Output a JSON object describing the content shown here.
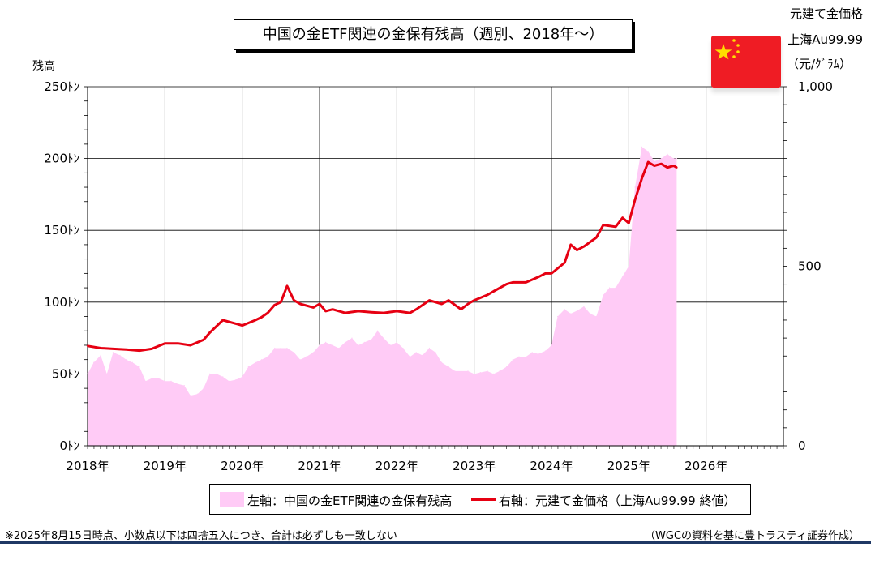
{
  "title": "中国の金ETF関連の金保有残高（週別、2018年～）",
  "left_axis": {
    "label": "残高",
    "ticks": [
      "250ﾄﾝ",
      "200ﾄﾝ",
      "150ﾄﾝ",
      "100ﾄﾝ",
      "50ﾄﾝ",
      "0ﾄﾝ"
    ]
  },
  "right_axis": {
    "label_line1": "元建て金価格",
    "label_line2": "上海Au99.99",
    "label_line3": "（元/ｸﾞﾗﾑ）",
    "ticks": [
      "1,000",
      "500",
      "0"
    ]
  },
  "x_ticks": [
    "2018年",
    "2019年",
    "2020年",
    "2021年",
    "2022年",
    "2023年",
    "2024年",
    "2025年",
    "2026年"
  ],
  "legend": {
    "area_label": "左軸：中国の金ETF関連の金保有残高",
    "line_label": "右軸：元建て金価格（上海Au99.99 終値）"
  },
  "footnote": "※2025年8月15日時点、小数点以下は四捨五入につき、合計は必ずしも一致しない",
  "source": "（WGCの資料を基に豊トラスティ証券作成）",
  "flag_icon": "china-flag-icon",
  "colors": {
    "area": "#ffcbf6",
    "line": "#e60012",
    "grid": "#000000",
    "flag_red": "#ef1c24",
    "flag_star": "#ffde00"
  },
  "chart_data": {
    "type": "area+line",
    "x_range": [
      "2018-01",
      "2027-01"
    ],
    "y_left_range": [
      0,
      250
    ],
    "y_right_range": [
      0,
      1000
    ],
    "grid": "on",
    "legend_position": "bottom",
    "series": [
      {
        "name": "左軸：中国の金ETF関連の金保有残高",
        "axis": "left",
        "type": "area",
        "x": [
          2018.0,
          2018.08,
          2018.17,
          2018.25,
          2018.33,
          2018.42,
          2018.5,
          2018.58,
          2018.67,
          2018.75,
          2018.83,
          2018.92,
          2019.0,
          2019.08,
          2019.17,
          2019.25,
          2019.33,
          2019.42,
          2019.5,
          2019.58,
          2019.67,
          2019.75,
          2019.83,
          2019.92,
          2020.0,
          2020.08,
          2020.17,
          2020.25,
          2020.33,
          2020.42,
          2020.5,
          2020.58,
          2020.67,
          2020.75,
          2020.83,
          2020.92,
          2021.0,
          2021.08,
          2021.17,
          2021.25,
          2021.33,
          2021.42,
          2021.5,
          2021.58,
          2021.67,
          2021.75,
          2021.83,
          2021.92,
          2022.0,
          2022.08,
          2022.17,
          2022.25,
          2022.33,
          2022.42,
          2022.5,
          2022.58,
          2022.67,
          2022.75,
          2022.83,
          2022.92,
          2023.0,
          2023.08,
          2023.17,
          2023.25,
          2023.33,
          2023.42,
          2023.5,
          2023.58,
          2023.67,
          2023.75,
          2023.83,
          2023.92,
          2024.0,
          2024.08,
          2024.17,
          2024.25,
          2024.33,
          2024.42,
          2024.5,
          2024.58,
          2024.67,
          2024.75,
          2024.83,
          2024.92,
          2025.0,
          2025.08,
          2025.17,
          2025.25,
          2025.33,
          2025.42,
          2025.5,
          2025.58,
          2025.62
        ],
        "values": [
          50,
          58,
          63,
          50,
          65,
          63,
          60,
          58,
          55,
          45,
          47,
          47,
          45,
          45,
          43,
          42,
          35,
          36,
          40,
          50,
          50,
          48,
          45,
          46,
          48,
          55,
          58,
          60,
          62,
          68,
          68,
          68,
          65,
          60,
          62,
          65,
          70,
          72,
          70,
          68,
          72,
          75,
          70,
          72,
          74,
          80,
          75,
          70,
          72,
          68,
          62,
          65,
          63,
          68,
          65,
          58,
          55,
          52,
          52,
          52,
          50,
          51,
          52,
          50,
          52,
          55,
          60,
          62,
          62,
          65,
          64,
          66,
          70,
          90,
          95,
          92,
          94,
          97,
          92,
          90,
          105,
          110,
          110,
          118,
          125,
          180,
          208,
          205,
          198,
          200,
          203,
          200,
          200
        ]
      },
      {
        "name": "右軸：元建て金価格（上海Au99.99 終値）",
        "axis": "right",
        "type": "line",
        "x": [
          2018.0,
          2018.17,
          2018.33,
          2018.5,
          2018.67,
          2018.83,
          2019.0,
          2019.17,
          2019.33,
          2019.5,
          2019.58,
          2019.75,
          2019.92,
          2020.0,
          2020.17,
          2020.25,
          2020.33,
          2020.42,
          2020.5,
          2020.58,
          2020.67,
          2020.75,
          2020.92,
          2021.0,
          2021.08,
          2021.17,
          2021.33,
          2021.5,
          2021.67,
          2021.83,
          2022.0,
          2022.17,
          2022.25,
          2022.42,
          2022.5,
          2022.58,
          2022.67,
          2022.83,
          2022.92,
          2023.0,
          2023.17,
          2023.25,
          2023.42,
          2023.5,
          2023.67,
          2023.83,
          2023.92,
          2024.0,
          2024.17,
          2024.25,
          2024.33,
          2024.42,
          2024.58,
          2024.67,
          2024.83,
          2024.92,
          2025.0,
          2025.08,
          2025.17,
          2025.25,
          2025.33,
          2025.42,
          2025.5,
          2025.58,
          2025.62
        ],
        "values": [
          278,
          272,
          270,
          268,
          265,
          270,
          285,
          285,
          280,
          295,
          315,
          350,
          340,
          335,
          350,
          358,
          370,
          392,
          400,
          445,
          405,
          395,
          385,
          395,
          375,
          380,
          370,
          375,
          372,
          370,
          375,
          370,
          380,
          405,
          400,
          395,
          405,
          380,
          395,
          405,
          420,
          430,
          450,
          455,
          455,
          470,
          480,
          480,
          510,
          560,
          545,
          555,
          580,
          615,
          610,
          635,
          620,
          685,
          745,
          790,
          780,
          785,
          775,
          780,
          775
        ]
      }
    ]
  }
}
